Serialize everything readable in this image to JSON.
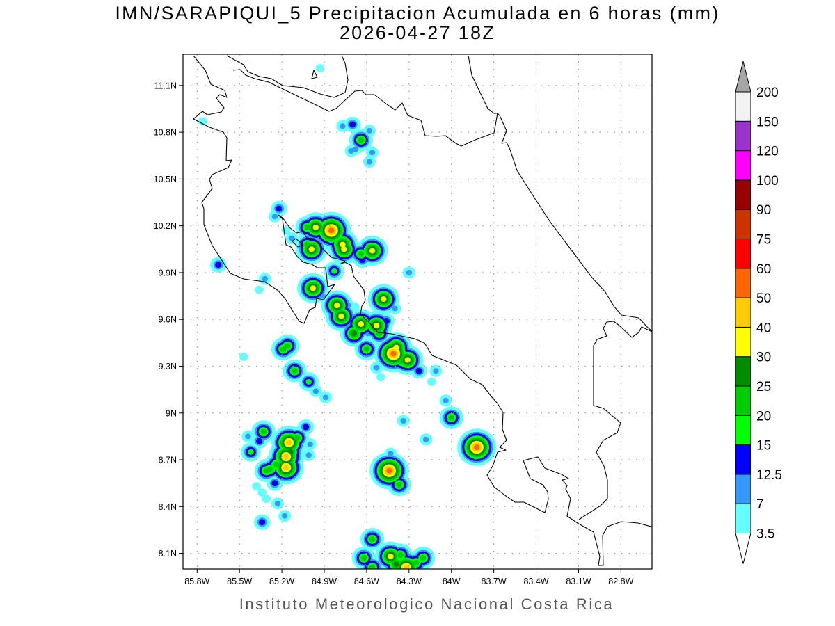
{
  "title": {
    "line1": "IMN/SARAPIQUI_5 Precipitacion Acumulada en 6 horas (mm)",
    "line2": "2026-04-27 18Z"
  },
  "footer": "Instituto Meteorologico Nacional Costa Rica",
  "map": {
    "lon_range": [
      -85.9,
      -82.58
    ],
    "lat_range": [
      8.0,
      11.3
    ],
    "lon_ticks": [
      {
        "value": -85.8,
        "label": "85.8W"
      },
      {
        "value": -85.5,
        "label": "85.5W"
      },
      {
        "value": -85.2,
        "label": "85.2W"
      },
      {
        "value": -84.9,
        "label": "84.9W"
      },
      {
        "value": -84.6,
        "label": "84.6W"
      },
      {
        "value": -84.3,
        "label": "84.3W"
      },
      {
        "value": -84.0,
        "label": "84W"
      },
      {
        "value": -83.7,
        "label": "83.7W"
      },
      {
        "value": -83.4,
        "label": "83.4W"
      },
      {
        "value": -83.1,
        "label": "83.1W"
      },
      {
        "value": -82.8,
        "label": "82.8W"
      }
    ],
    "lat_ticks": [
      {
        "value": 8.1,
        "label": "8.1N"
      },
      {
        "value": 8.4,
        "label": "8.4N"
      },
      {
        "value": 8.7,
        "label": "8.7N"
      },
      {
        "value": 9.0,
        "label": "9N"
      },
      {
        "value": 9.3,
        "label": "9.3N"
      },
      {
        "value": 9.6,
        "label": "9.6N"
      },
      {
        "value": 9.9,
        "label": "9.9N"
      },
      {
        "value": 10.2,
        "label": "10.2N"
      },
      {
        "value": 10.5,
        "label": "10.5N"
      },
      {
        "value": 10.8,
        "label": "10.8N"
      },
      {
        "value": 11.1,
        "label": "11.1N"
      }
    ],
    "grid": true
  },
  "colorbar": {
    "levels": [
      "3.5",
      "7",
      "12.5",
      "15",
      "20",
      "25",
      "30",
      "40",
      "50",
      "60",
      "75",
      "90",
      "100",
      "120",
      "150",
      "200"
    ],
    "colors": [
      "#66ffff",
      "#3399ff",
      "#0000ff",
      "#00ff00",
      "#00cc00",
      "#008c00",
      "#ffff00",
      "#ffcc00",
      "#ff6600",
      "#ff0000",
      "#cc3300",
      "#990000",
      "#ff00ff",
      "#9933cc",
      "#f2f2f2"
    ],
    "over_color": "#a6a6a6",
    "under_color": "#ffffff"
  },
  "chart_data": {
    "type": "heatmap",
    "title": "IMN/SARAPIQUI_5 Precipitacion Acumulada en 6 horas (mm)",
    "valid_time": "2026-04-27 18Z",
    "units": "mm",
    "cells_fields": [
      "lon",
      "lat",
      "peak_mm"
    ],
    "cells": [
      [
        -84.77,
        10.84,
        7
      ],
      [
        -84.7,
        10.85,
        12.5
      ],
      [
        -84.64,
        10.75,
        20
      ],
      [
        -84.71,
        10.68,
        7
      ],
      [
        -84.68,
        10.69,
        7
      ],
      [
        -84.58,
        10.81,
        7
      ],
      [
        -84.56,
        10.67,
        7
      ],
      [
        -84.58,
        10.61,
        7
      ],
      [
        -84.93,
        11.21,
        3.5
      ],
      [
        -85.76,
        10.87,
        3.5
      ],
      [
        -85.22,
        10.31,
        12.5
      ],
      [
        -85.25,
        10.26,
        7
      ],
      [
        -85.17,
        10.17,
        3.5
      ],
      [
        -85.13,
        10.12,
        7
      ],
      [
        -85.65,
        9.95,
        12.5
      ],
      [
        -85.32,
        9.86,
        7
      ],
      [
        -85.36,
        9.79,
        3.5
      ],
      [
        -85.02,
        10.19,
        20
      ],
      [
        -84.96,
        10.19,
        30
      ],
      [
        -85.02,
        10.08,
        20
      ],
      [
        -84.99,
        10.05,
        30
      ],
      [
        -84.85,
        10.17,
        50
      ],
      [
        -84.85,
        10.12,
        20
      ],
      [
        -84.77,
        10.08,
        30
      ],
      [
        -84.76,
        10.05,
        30
      ],
      [
        -84.64,
        10.02,
        20
      ],
      [
        -84.63,
        9.98,
        12.5
      ],
      [
        -84.56,
        10.04,
        30
      ],
      [
        -84.83,
        9.91,
        15
      ],
      [
        -84.8,
        9.88,
        3.5
      ],
      [
        -84.98,
        9.8,
        30
      ],
      [
        -84.91,
        9.75,
        7
      ],
      [
        -84.81,
        9.69,
        30
      ],
      [
        -84.78,
        9.62,
        30
      ],
      [
        -84.73,
        9.69,
        7
      ],
      [
        -84.68,
        9.68,
        3.5
      ],
      [
        -84.48,
        9.73,
        30
      ],
      [
        -84.69,
        9.51,
        25
      ],
      [
        -84.64,
        9.57,
        30
      ],
      [
        -84.53,
        9.56,
        30
      ],
      [
        -84.51,
        9.51,
        20
      ],
      [
        -84.46,
        9.59,
        12.5
      ],
      [
        -84.6,
        9.41,
        20
      ],
      [
        -84.53,
        9.29,
        7
      ],
      [
        -84.5,
        9.23,
        3.5
      ],
      [
        -85.19,
        9.41,
        20
      ],
      [
        -85.16,
        9.43,
        20
      ],
      [
        -85.47,
        9.36,
        3.5
      ],
      [
        -85.11,
        9.27,
        20
      ],
      [
        -85.01,
        9.2,
        15
      ],
      [
        -84.96,
        9.14,
        7
      ],
      [
        -84.89,
        9.1,
        7
      ],
      [
        -84.4,
        9.67,
        7
      ],
      [
        -84.43,
        9.41,
        20
      ],
      [
        -84.41,
        9.38,
        50
      ],
      [
        -84.39,
        9.42,
        30
      ],
      [
        -84.31,
        9.34,
        30
      ],
      [
        -84.35,
        9.33,
        20
      ],
      [
        -84.46,
        9.51,
        3.5
      ],
      [
        -84.59,
        9.51,
        7
      ],
      [
        -84.23,
        9.27,
        12.5
      ],
      [
        -84.11,
        9.27,
        7
      ],
      [
        -84.14,
        9.2,
        3.5
      ],
      [
        -84.3,
        9.9,
        7
      ],
      [
        -84.04,
        9.08,
        7
      ],
      [
        -84.0,
        8.97,
        20
      ],
      [
        -83.82,
        8.78,
        50
      ],
      [
        -84.34,
        8.95,
        7
      ],
      [
        -84.18,
        8.83,
        7
      ],
      [
        -84.43,
        8.74,
        7
      ],
      [
        -84.44,
        8.63,
        50
      ],
      [
        -84.37,
        8.54,
        20
      ],
      [
        -84.56,
        8.19,
        20
      ],
      [
        -84.62,
        8.07,
        20
      ],
      [
        -84.56,
        8.01,
        20
      ],
      [
        -84.43,
        8.08,
        30
      ],
      [
        -84.47,
        8.09,
        7
      ],
      [
        -84.36,
        8.09,
        20
      ],
      [
        -84.39,
        8.03,
        25
      ],
      [
        -84.32,
        8.01,
        40
      ],
      [
        -84.25,
        8.04,
        20
      ],
      [
        -84.2,
        8.07,
        20
      ],
      [
        -85.33,
        8.88,
        20
      ],
      [
        -85.44,
        8.85,
        7
      ],
      [
        -85.36,
        8.82,
        12.5
      ],
      [
        -85.42,
        8.75,
        15
      ],
      [
        -85.15,
        8.81,
        40
      ],
      [
        -85.09,
        8.84,
        20
      ],
      [
        -85.03,
        8.91,
        12.5
      ],
      [
        -85.0,
        8.8,
        7
      ],
      [
        -85.01,
        8.73,
        7
      ],
      [
        -85.17,
        8.72,
        40
      ],
      [
        -85.17,
        8.65,
        40
      ],
      [
        -85.24,
        8.67,
        20
      ],
      [
        -85.31,
        8.63,
        20
      ],
      [
        -85.28,
        8.64,
        20
      ],
      [
        -85.25,
        8.55,
        12.5
      ],
      [
        -85.38,
        8.53,
        3.5
      ],
      [
        -85.34,
        8.49,
        3.5
      ],
      [
        -85.31,
        8.45,
        3.5
      ],
      [
        -85.23,
        8.42,
        7
      ],
      [
        -85.18,
        8.34,
        7
      ],
      [
        -85.34,
        8.3,
        12.5
      ],
      [
        -85.14,
        8.75,
        25
      ]
    ]
  }
}
